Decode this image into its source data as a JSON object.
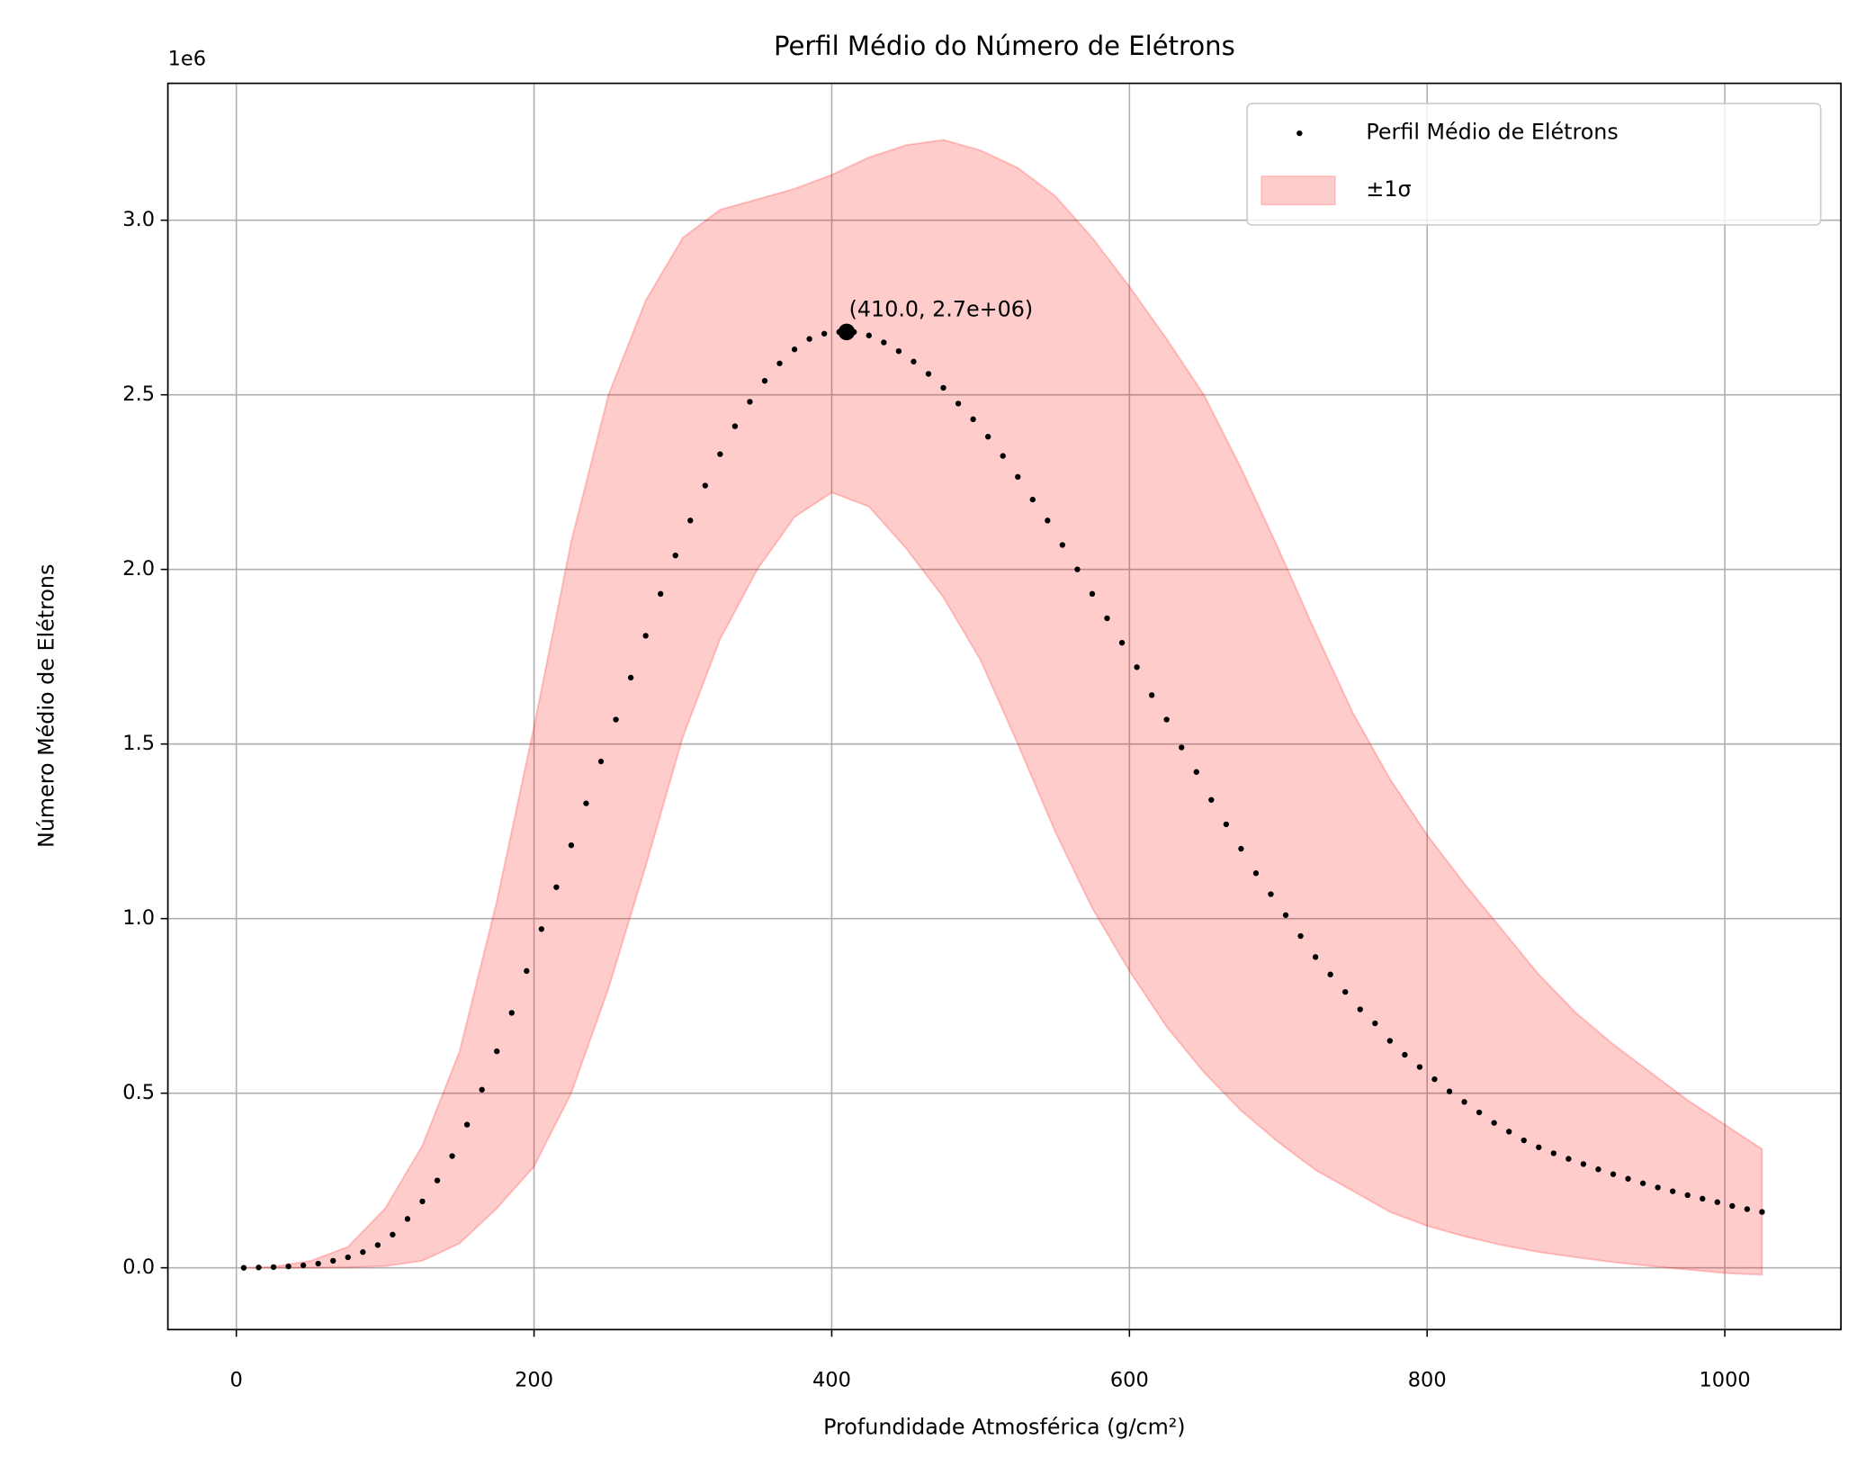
{
  "chart_data": {
    "type": "scatter",
    "title": "Perfil Médio do Número de Elétrons",
    "xlabel": "Profundidade Atmosférica (g/cm²)",
    "ylabel": "Número Médio de Elétrons",
    "y_offset_label": "1e6",
    "x": [
      5,
      15,
      25,
      35,
      45,
      55,
      65,
      75,
      85,
      95,
      105,
      115,
      125,
      135,
      145,
      155,
      165,
      175,
      185,
      195,
      205,
      215,
      225,
      235,
      245,
      255,
      265,
      275,
      285,
      295,
      305,
      315,
      325,
      335,
      345,
      355,
      365,
      375,
      385,
      395,
      405,
      415,
      425,
      435,
      445,
      455,
      465,
      475,
      485,
      495,
      505,
      515,
      525,
      535,
      545,
      555,
      565,
      575,
      585,
      595,
      605,
      615,
      625,
      635,
      645,
      655,
      665,
      675,
      685,
      695,
      705,
      715,
      725,
      735,
      745,
      755,
      765,
      775,
      785,
      795,
      805,
      815,
      825,
      835,
      845,
      855,
      865,
      875,
      885,
      895,
      905,
      915,
      925,
      935,
      945,
      955,
      965,
      975,
      985,
      995,
      1005,
      1015,
      1025
    ],
    "series": [
      {
        "name": "Perfil Médio de Elétrons",
        "color": "#000000",
        "values": [
          0,
          1000,
          2000,
          4000,
          7000,
          12000,
          20000,
          30000,
          45000,
          65000,
          95000,
          140000,
          190000,
          250000,
          320000,
          410000,
          510000,
          620000,
          730000,
          850000,
          970000,
          1090000,
          1210000,
          1330000,
          1450000,
          1570000,
          1690000,
          1810000,
          1930000,
          2040000,
          2140000,
          2240000,
          2330000,
          2410000,
          2480000,
          2540000,
          2590000,
          2630000,
          2660000,
          2675000,
          2680000,
          2680000,
          2670000,
          2650000,
          2625000,
          2595000,
          2560000,
          2520000,
          2475000,
          2430000,
          2380000,
          2325000,
          2265000,
          2200000,
          2140000,
          2070000,
          2000000,
          1930000,
          1860000,
          1790000,
          1720000,
          1640000,
          1570000,
          1490000,
          1420000,
          1340000,
          1270000,
          1200000,
          1130000,
          1070000,
          1010000,
          950000,
          890000,
          840000,
          790000,
          740000,
          700000,
          650000,
          610000,
          575000,
          540000,
          505000,
          475000,
          445000,
          415000,
          390000,
          365000,
          345000,
          328000,
          312000,
          297000,
          282000,
          268000,
          255000,
          242000,
          230000,
          219000,
          208000,
          198000,
          188000,
          177000,
          168000,
          160000
        ]
      }
    ],
    "band": {
      "name": "±1σ",
      "color": "#ff0000",
      "x": [
        5,
        25,
        50,
        75,
        100,
        125,
        150,
        175,
        200,
        225,
        250,
        275,
        300,
        325,
        350,
        375,
        400,
        425,
        450,
        475,
        500,
        525,
        550,
        575,
        600,
        625,
        650,
        675,
        700,
        725,
        750,
        775,
        800,
        825,
        850,
        875,
        900,
        925,
        950,
        975,
        1000,
        1025
      ],
      "upper": [
        0,
        3000,
        20000,
        60000,
        170000,
        350000,
        620000,
        1050000,
        1550000,
        2080000,
        2500000,
        2770000,
        2950000,
        3030000,
        3060000,
        3090000,
        3130000,
        3180000,
        3215000,
        3230000,
        3200000,
        3150000,
        3070000,
        2950000,
        2810000,
        2660000,
        2500000,
        2290000,
        2060000,
        1820000,
        1590000,
        1400000,
        1240000,
        1100000,
        970000,
        840000,
        730000,
        640000,
        560000,
        480000,
        410000,
        340000
      ],
      "lower": [
        0,
        0,
        0,
        1000,
        5000,
        20000,
        70000,
        170000,
        290000,
        500000,
        800000,
        1150000,
        1520000,
        1800000,
        2000000,
        2150000,
        2220000,
        2180000,
        2060000,
        1920000,
        1740000,
        1500000,
        1250000,
        1030000,
        850000,
        690000,
        560000,
        450000,
        360000,
        280000,
        220000,
        160000,
        120000,
        90000,
        65000,
        45000,
        30000,
        16000,
        5000,
        -5000,
        -15000,
        -20000
      ]
    },
    "peak": {
      "x": 410,
      "y": 2680000,
      "label": "(410.0, 2.7e+06)"
    },
    "xlim": [
      -46,
      1078
    ],
    "ylim": [
      -177000,
      3392000
    ],
    "xticks": [
      0,
      200,
      400,
      600,
      800,
      1000
    ],
    "yticks": [
      {
        "value": 0,
        "label": "0.0"
      },
      {
        "value": 500000,
        "label": "0.5"
      },
      {
        "value": 1000000,
        "label": "1.0"
      },
      {
        "value": 1500000,
        "label": "1.5"
      },
      {
        "value": 2000000,
        "label": "2.0"
      },
      {
        "value": 2500000,
        "label": "2.5"
      },
      {
        "value": 3000000,
        "label": "3.0"
      }
    ],
    "grid": true,
    "legend": "upper right"
  }
}
